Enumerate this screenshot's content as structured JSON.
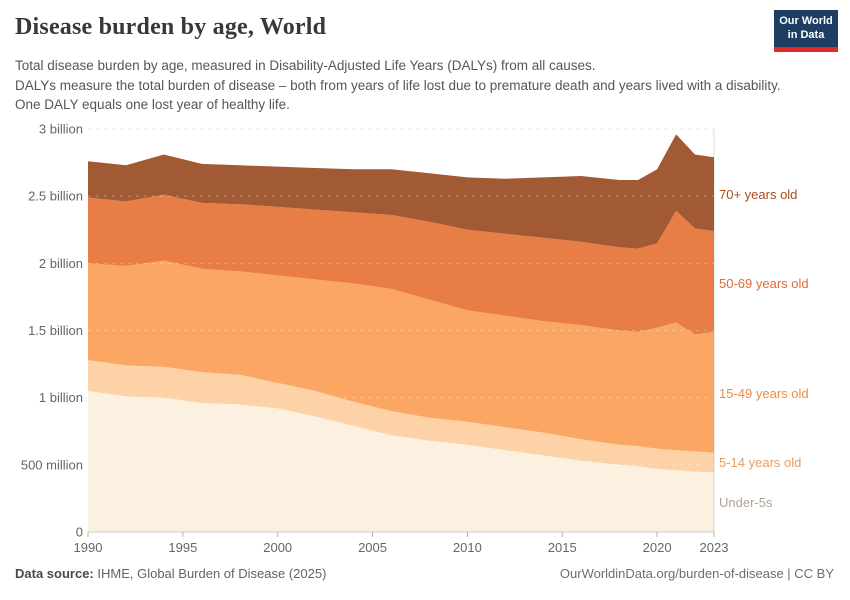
{
  "header": {
    "title": "Disease burden by age, World",
    "subtitle_line1": "Total disease burden by age, measured in Disability-Adjusted Life Years (DALYs) from all causes.",
    "subtitle_line2": "DALYs measure the total burden of disease – both from years of life lost due to premature death and years lived with a disability. One DALY equals one lost year of healthy life.",
    "logo": {
      "line1": "Our World",
      "line2": "in Data",
      "bg_color": "#1D3D63",
      "bar_color": "#E12A26"
    }
  },
  "chart_data": {
    "type": "area",
    "stacked": true,
    "title": "Disease burden by age, World",
    "units": "DALYs (billions)",
    "grid": "dashed-horizontal",
    "legend_position": "right-edge-labels",
    "x": [
      1990,
      1992,
      1994,
      1996,
      1998,
      2000,
      2002,
      2004,
      2006,
      2008,
      2010,
      2012,
      2014,
      2016,
      2018,
      2019,
      2020,
      2021,
      2022,
      2023
    ],
    "xticks": [
      1990,
      1995,
      2000,
      2005,
      2010,
      2015,
      2020,
      2023
    ],
    "ylim_billions": [
      0,
      3
    ],
    "yticks": [
      {
        "value": 0,
        "label": "0"
      },
      {
        "value": 0.5,
        "label": "500 million"
      },
      {
        "value": 1,
        "label": "1 billion"
      },
      {
        "value": 1.5,
        "label": "1.5 billion"
      },
      {
        "value": 2,
        "label": "2 billion"
      },
      {
        "value": 2.5,
        "label": "2.5 billion"
      },
      {
        "value": 3,
        "label": "3 billion"
      }
    ],
    "series": [
      {
        "name": "under5",
        "label": "Under-5s",
        "color": "#FCF0E1",
        "label_color": "#AFA396",
        "values": [
          1.05,
          1.01,
          1.0,
          0.96,
          0.95,
          0.92,
          0.86,
          0.79,
          0.72,
          0.68,
          0.65,
          0.61,
          0.57,
          0.53,
          0.5,
          0.49,
          0.47,
          0.46,
          0.45,
          0.445
        ]
      },
      {
        "name": "age5_14",
        "label": "5-14 years old",
        "color": "#FDD2A6",
        "label_color": "#E89C5E",
        "values": [
          0.23,
          0.23,
          0.23,
          0.23,
          0.22,
          0.19,
          0.19,
          0.18,
          0.18,
          0.17,
          0.17,
          0.17,
          0.17,
          0.16,
          0.15,
          0.15,
          0.15,
          0.15,
          0.15,
          0.145
        ]
      },
      {
        "name": "age15_49",
        "label": "15-49 years old",
        "color": "#FBA763",
        "label_color": "#EF8B43",
        "values": [
          0.72,
          0.74,
          0.79,
          0.77,
          0.77,
          0.8,
          0.83,
          0.88,
          0.91,
          0.88,
          0.83,
          0.83,
          0.83,
          0.85,
          0.85,
          0.85,
          0.9,
          0.95,
          0.87,
          0.9
        ]
      },
      {
        "name": "age50_69",
        "label": "50-69 years old",
        "color": "#E87D45",
        "label_color": "#E06D36",
        "values": [
          0.49,
          0.48,
          0.49,
          0.49,
          0.5,
          0.51,
          0.52,
          0.53,
          0.55,
          0.58,
          0.6,
          0.61,
          0.62,
          0.62,
          0.62,
          0.62,
          0.63,
          0.83,
          0.79,
          0.75
        ]
      },
      {
        "name": "age70plus",
        "label": "70+ years old",
        "color": "#A25A34",
        "label_color": "#A84C20",
        "values": [
          0.27,
          0.27,
          0.3,
          0.29,
          0.29,
          0.3,
          0.31,
          0.32,
          0.34,
          0.36,
          0.39,
          0.41,
          0.45,
          0.49,
          0.5,
          0.51,
          0.55,
          0.57,
          0.55,
          0.55
        ]
      }
    ]
  },
  "footer": {
    "source_label": "Data source:",
    "source_text": " IHME, Global Burden of Disease (2025)",
    "link_text": "OurWorldinData.org/burden-of-disease | CC BY"
  }
}
